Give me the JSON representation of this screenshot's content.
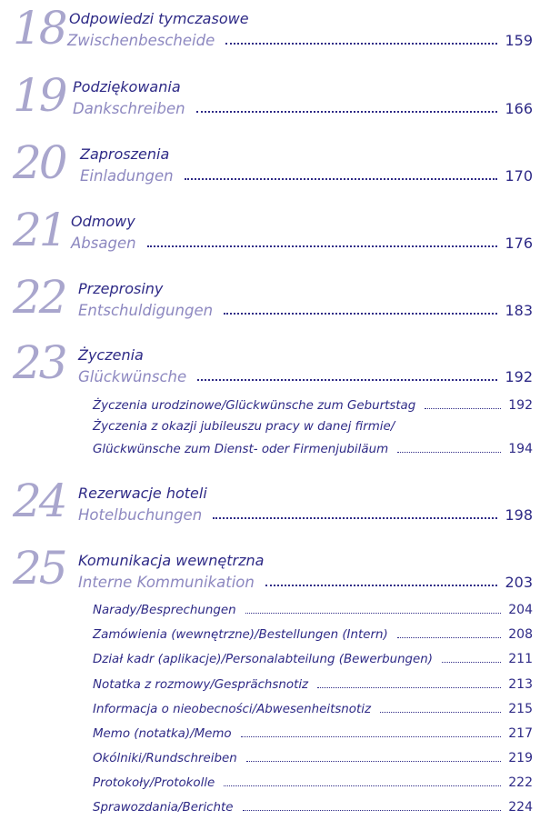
{
  "chapters": [
    {
      "number": "18",
      "polish": "Odpowiedzi tymczasowe",
      "german": "Zwischenbescheide",
      "page": "159"
    },
    {
      "number": "19",
      "polish": "Podziękowania",
      "german": "Dankschreiben",
      "page": "166"
    },
    {
      "number": "20",
      "polish": "Zaproszenia",
      "german": "Einladungen",
      "page": "170"
    },
    {
      "number": "21",
      "polish": "Odmowy",
      "german": "Absagen",
      "page": "176"
    },
    {
      "number": "22",
      "polish": "Przeprosiny",
      "german": "Entschuldigungen",
      "page": "183"
    },
    {
      "number": "23",
      "polish": "Życzenia",
      "german": "Glückwünsche",
      "page": "192",
      "subs": [
        {
          "title": "Życzenia urodzinowe/Glückwünsche zum Geburtstag",
          "page": "192"
        },
        {
          "title_line1": "Życzenia z okazji jubileuszu pracy w danej firmie/",
          "title": "Glückwünsche zum Dienst- oder Firmenjubiläum",
          "page": "194"
        }
      ]
    },
    {
      "number": "24",
      "polish": "Rezerwacje hoteli",
      "german": "Hotelbuchungen",
      "page": "198"
    },
    {
      "number": "25",
      "polish": "Komunikacja wewnętrzna",
      "german": "Interne Kommunikation",
      "page": "203",
      "subs": [
        {
          "title": "Narady/Besprechungen",
          "page": "204"
        },
        {
          "title": "Zamówienia (wewnętrzne)/Bestellungen (Intern)",
          "page": "208"
        },
        {
          "title": "Dział kadr (aplikacje)/Personalabteilung (Bewerbungen)",
          "page": "211"
        },
        {
          "title": "Notatka z rozmowy/Gesprächsnotiz",
          "page": "213"
        },
        {
          "title": "Informacja o nieobecności/Abwesenheitsnotiz",
          "page": "215"
        },
        {
          "title": "Memo (notatka)/Memo",
          "page": "217"
        },
        {
          "title": "Okólniki/Rundschreiben",
          "page": "219"
        },
        {
          "title": "Protokoły/Protokolle",
          "page": "222"
        },
        {
          "title": "Sprawozdania/Berichte",
          "page": "224"
        }
      ]
    }
  ]
}
